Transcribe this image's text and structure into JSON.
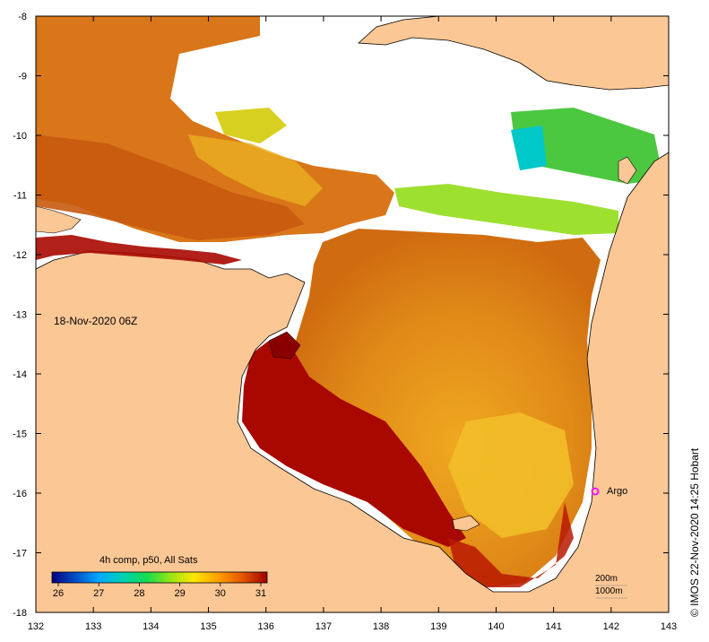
{
  "map": {
    "timestamp": "18-Nov-2020 06Z",
    "credit": "© IMOS 22-Nov-2020 14:25 Hobart",
    "x_ticks": [
      "132",
      "133",
      "134",
      "135",
      "136",
      "137",
      "138",
      "139",
      "140",
      "141",
      "142",
      "143"
    ],
    "y_ticks": [
      "-8",
      "-9",
      "-10",
      "-11",
      "-12",
      "-13",
      "-14",
      "-15",
      "-16",
      "-17",
      "-18"
    ],
    "lon_range": [
      132,
      143
    ],
    "lat_range": [
      -8,
      -18
    ],
    "land_color": "#fbc795"
  },
  "colorbar": {
    "title": "4h comp, p50, All Sats",
    "ticks": [
      "26",
      "27",
      "28",
      "29",
      "30",
      "31"
    ],
    "colors": [
      "#000080",
      "#0050c8",
      "#00aaff",
      "#00d2b4",
      "#14dc50",
      "#96e614",
      "#ffe600",
      "#ffa000",
      "#e65a00",
      "#a00000"
    ]
  },
  "legend": {
    "line1": "200m",
    "line2": "1000m"
  },
  "marker": {
    "label": "Argo",
    "color": "#ff00ff"
  }
}
